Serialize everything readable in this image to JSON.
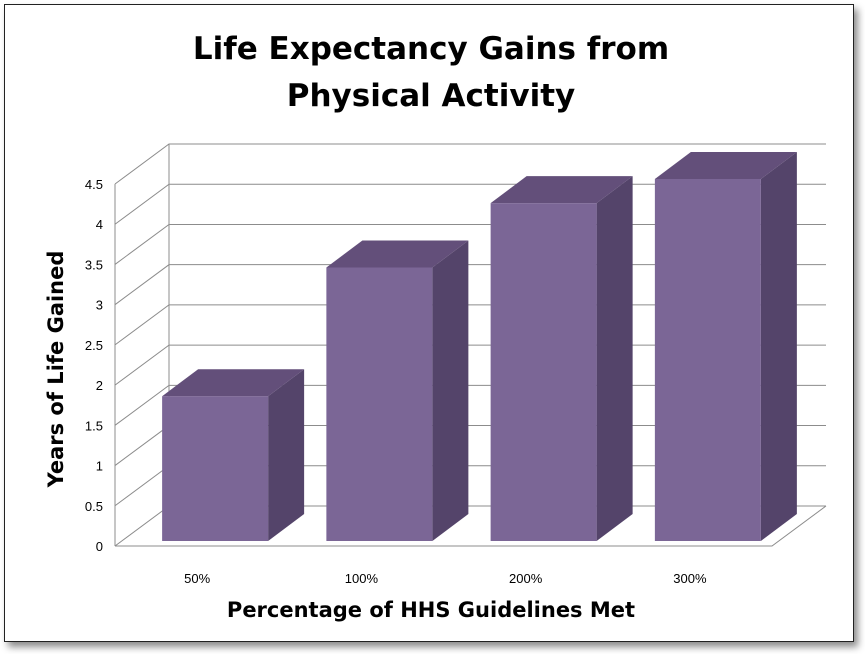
{
  "chart_data": {
    "type": "bar",
    "title_lines": [
      "Life Expectancy Gains from",
      "Physical Activity"
    ],
    "xlabel": "Percentage of HHS Guidelines Met",
    "ylabel": "Years of Life Gained",
    "categories": [
      "50%",
      "100%",
      "200%",
      "300%"
    ],
    "values": [
      1.8,
      3.4,
      4.2,
      4.5
    ],
    "ylim": [
      0,
      4.5
    ],
    "yticks": [
      "0",
      "0.5",
      "1",
      "1.5",
      "2",
      "2.5",
      "3",
      "3.5",
      "4",
      "4.5"
    ],
    "grid": true,
    "legend": "none",
    "style": "3d-column",
    "colors": {
      "front": "#7b6696",
      "top": "#634f7a",
      "side": "#54446a",
      "grid": "#8c8c8c"
    }
  }
}
